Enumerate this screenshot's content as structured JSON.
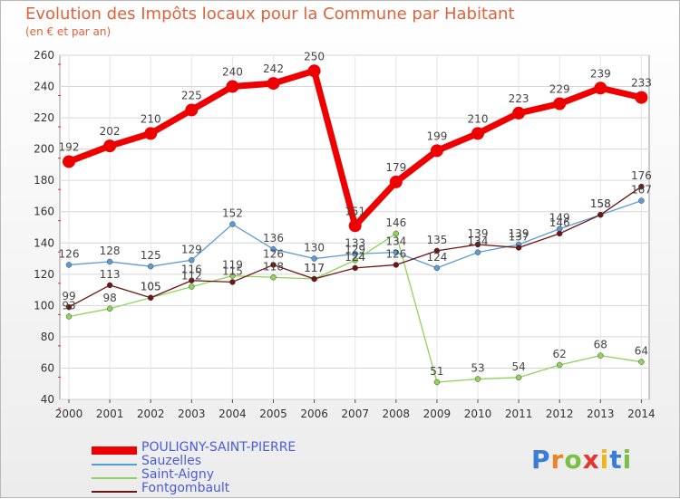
{
  "title": "Evolution des Impôts locaux pour la Commune par Habitant",
  "subtitle": "(en € et par an)",
  "logo_letters": [
    "P",
    "r",
    "o",
    "x",
    "i",
    "t",
    "i"
  ],
  "logo_colors": [
    "#3a7dd8",
    "#e8842a",
    "#7bc043",
    "#e2382f",
    "#f3b51b",
    "#3a7dd8",
    "#7bc043"
  ],
  "chart_data": {
    "type": "line",
    "x": [
      2000,
      2001,
      2002,
      2003,
      2004,
      2005,
      2006,
      2007,
      2008,
      2009,
      2010,
      2011,
      2012,
      2013,
      2014
    ],
    "ylim": [
      40,
      260
    ],
    "yticks": [
      40,
      60,
      80,
      100,
      120,
      140,
      160,
      180,
      200,
      220,
      240,
      260
    ],
    "grid": true,
    "series": [
      {
        "name": "POULIGNY-SAINT-PIERRE",
        "color": "#ee0000",
        "width": 7,
        "marker": 7,
        "values": [
          192,
          202,
          210,
          225,
          240,
          242,
          250,
          151,
          179,
          199,
          210,
          223,
          229,
          239,
          233
        ],
        "labels": [
          "192",
          "202",
          "210",
          "225",
          "240",
          "242",
          "250",
          "151",
          "179",
          "199",
          "210",
          "223",
          "229",
          "239",
          "233"
        ]
      },
      {
        "name": "Sauzelles",
        "color": "#5b9bd5",
        "width": 1.3,
        "marker": 3,
        "values": [
          126,
          128,
          125,
          129,
          152,
          136,
          130,
          133,
          134,
          124,
          134,
          139,
          149,
          158,
          167
        ],
        "labels": [
          "126",
          "128",
          "125",
          "129",
          "152",
          "136",
          "130",
          "133",
          "134",
          "124",
          "134",
          "139",
          "149",
          "158",
          "167"
        ]
      },
      {
        "name": "Saint-Aigny",
        "color": "#8fd35a",
        "width": 1.3,
        "marker": 3,
        "values": [
          93,
          98,
          105,
          112,
          119,
          118,
          117,
          129,
          146,
          51,
          53,
          54,
          62,
          68,
          64
        ],
        "labels": [
          "93",
          "98",
          "105",
          "112",
          "119",
          "118",
          "117",
          "129",
          "146",
          "51",
          "53",
          "54",
          "62",
          "68",
          "64"
        ]
      },
      {
        "name": "Fontgombault",
        "color": "#6e1414",
        "width": 1.3,
        "marker": 3,
        "values": [
          99,
          113,
          105,
          116,
          115,
          126,
          117,
          124,
          126,
          135,
          139,
          137,
          146,
          158,
          176
        ],
        "labels": [
          "99",
          "113",
          "105",
          "116",
          "115",
          "126",
          "117",
          "124",
          "126",
          "135",
          "139",
          "137",
          "146",
          "158",
          "176"
        ]
      }
    ]
  }
}
